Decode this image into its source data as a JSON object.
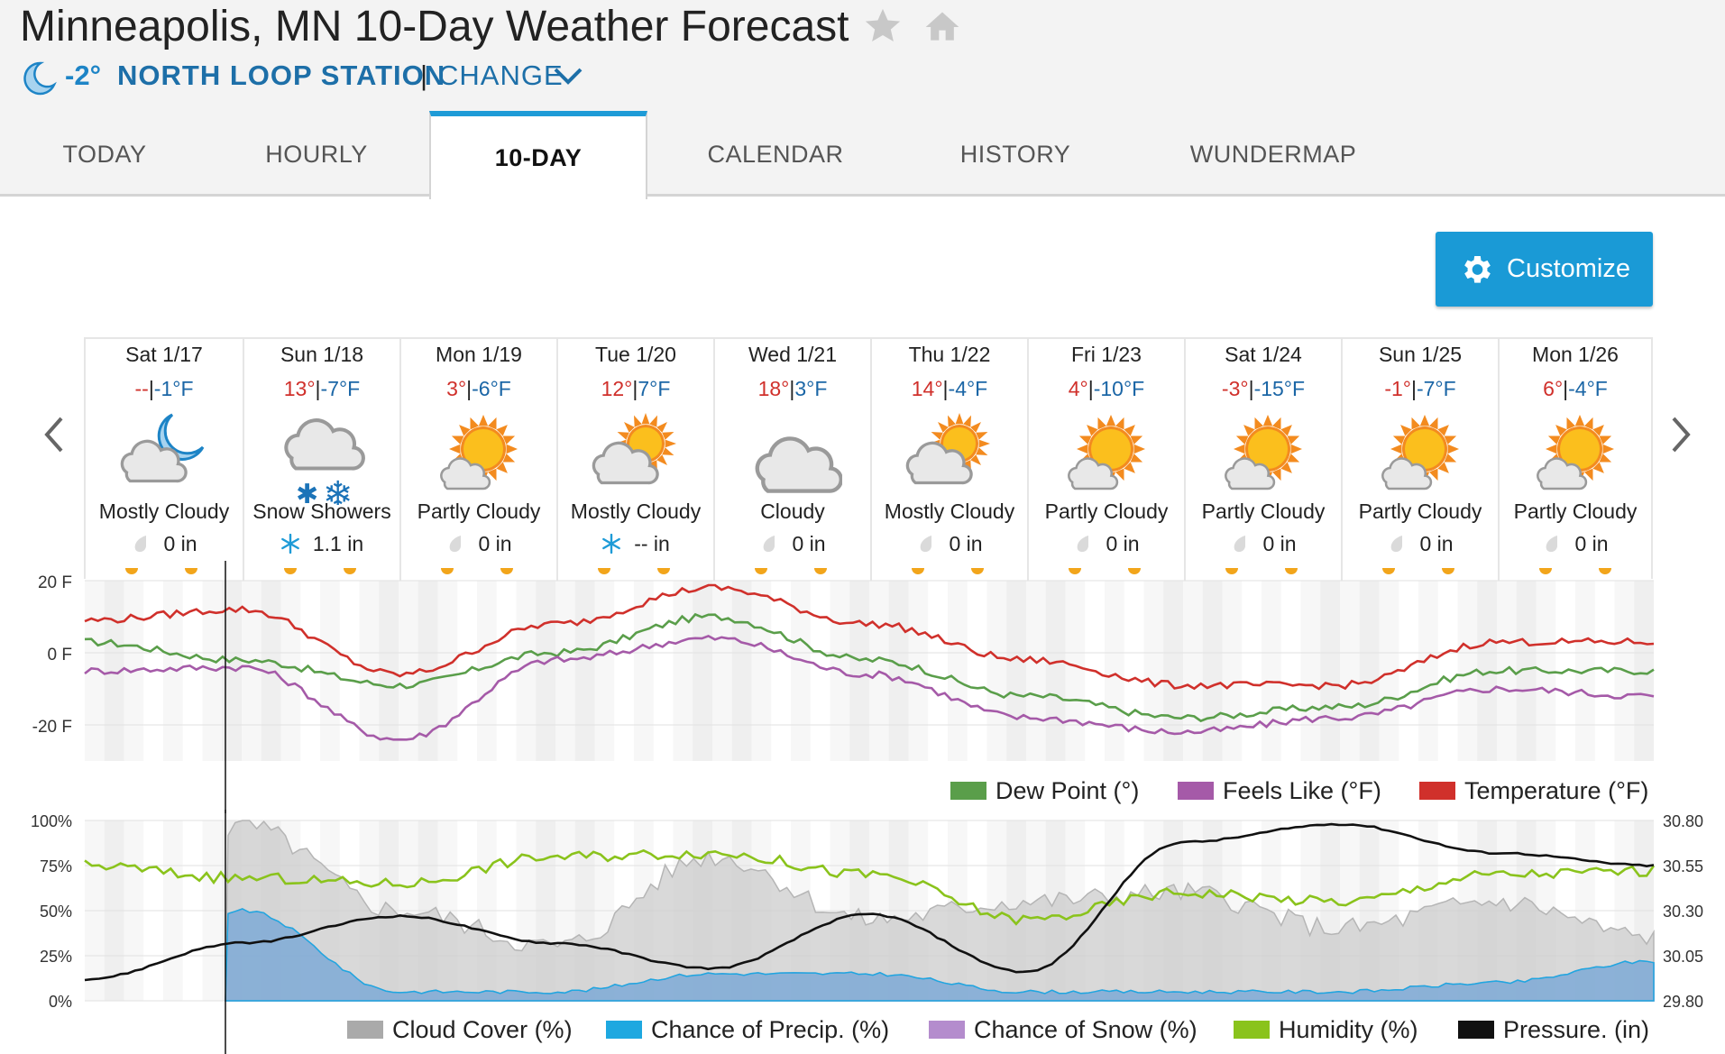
{
  "page": {
    "title": "Minneapolis, MN 10-Day Weather Forecast"
  },
  "station": {
    "current_temp": "-2°",
    "name": "NORTH LOOP STATION",
    "separator": "|",
    "change_label": "CHANGE"
  },
  "tabs": [
    "TODAY",
    "HOURLY",
    "10-DAY",
    "CALENDAR",
    "HISTORY",
    "WUNDERMAP"
  ],
  "active_tab": "10-DAY",
  "customize_label": "Customize",
  "days": [
    {
      "date": "Sat 1/17",
      "high": "--",
      "low": "-1°F",
      "condition": "Mostly Cloudy",
      "icon": "night-mostly-cloudy-icon",
      "precip": "0 in",
      "precip_icon": "rain-drop-icon"
    },
    {
      "date": "Sun 1/18",
      "high": "13°",
      "low": "-7°F",
      "condition": "Snow Showers",
      "icon": "snow-showers-icon",
      "precip": "1.1 in",
      "precip_icon": "snowflake-icon"
    },
    {
      "date": "Mon 1/19",
      "high": "3°",
      "low": "-6°F",
      "condition": "Partly Cloudy",
      "icon": "partly-cloudy-icon",
      "precip": "0 in",
      "precip_icon": "rain-drop-icon"
    },
    {
      "date": "Tue 1/20",
      "high": "12°",
      "low": "7°F",
      "condition": "Mostly Cloudy",
      "icon": "mostly-cloudy-icon",
      "precip": "-- in",
      "precip_icon": "snowflake-icon"
    },
    {
      "date": "Wed 1/21",
      "high": "18°",
      "low": "3°F",
      "condition": "Cloudy",
      "icon": "cloudy-icon",
      "precip": "0 in",
      "precip_icon": "rain-drop-icon"
    },
    {
      "date": "Thu 1/22",
      "high": "14°",
      "low": "-4°F",
      "condition": "Mostly Cloudy",
      "icon": "mostly-cloudy-icon",
      "precip": "0 in",
      "precip_icon": "rain-drop-icon"
    },
    {
      "date": "Fri 1/23",
      "high": "4°",
      "low": "-10°F",
      "condition": "Partly Cloudy",
      "icon": "partly-cloudy-icon",
      "precip": "0 in",
      "precip_icon": "rain-drop-icon"
    },
    {
      "date": "Sat 1/24",
      "high": "-3°",
      "low": "-15°F",
      "condition": "Partly Cloudy",
      "icon": "partly-cloudy-icon",
      "precip": "0 in",
      "precip_icon": "rain-drop-icon"
    },
    {
      "date": "Sun 1/25",
      "high": "-1°",
      "low": "-7°F",
      "condition": "Partly Cloudy",
      "icon": "partly-cloudy-icon",
      "precip": "0 in",
      "precip_icon": "rain-drop-icon"
    },
    {
      "date": "Mon 1/26",
      "high": "6°",
      "low": "-4°F",
      "condition": "Partly Cloudy",
      "icon": "partly-cloudy-icon",
      "precip": "0 in",
      "precip_icon": "rain-drop-icon"
    }
  ],
  "colors": {
    "accent": "#1e9bd7",
    "high": "#d0302b",
    "low": "#1b66a6",
    "dew_point": "#5a9e4a",
    "feels_like": "#a55aa8",
    "temperature": "#d0302b",
    "cloud_cover": "#aaaaaa",
    "precip": "#1ea8e0",
    "snow": "#b48ccd",
    "humidity": "#8ac31c",
    "pressure": "#111111"
  },
  "chart_data": [
    {
      "type": "line",
      "y_tick_labels": [
        "20 F",
        "0 F",
        "-20 F"
      ],
      "ylim": [
        -30,
        20
      ],
      "x": [
        "Sat 1/17",
        "Sun 1/18",
        "Mon 1/19",
        "Tue 1/20",
        "Wed 1/21",
        "Thu 1/22",
        "Fri 1/23",
        "Sat 1/24",
        "Sun 1/25",
        "Mon 1/26",
        "end"
      ],
      "series": [
        {
          "name": "Dew Point (°)",
          "color": "#5a9e4a",
          "values": [
            3,
            -2,
            -9,
            0,
            10,
            -2,
            -12,
            -18,
            -15,
            -5,
            -5
          ]
        },
        {
          "name": "Feels Like (°F)",
          "color": "#a55aa8",
          "values": [
            -5,
            -4,
            -24,
            -2,
            4,
            -6,
            -18,
            -22,
            -18,
            -10,
            -12
          ]
        },
        {
          "name": "Temperature (°F)",
          "color": "#d0302b",
          "values": [
            9,
            12,
            -6,
            8,
            18,
            8,
            -2,
            -9,
            -9,
            3,
            3
          ]
        }
      ],
      "legend_position": "bottom-right"
    },
    {
      "type": "area",
      "y_tick_labels": [
        "100%",
        "75%",
        "50%",
        "25%",
        "0%"
      ],
      "y2_tick_labels": [
        "30.80",
        "30.55",
        "30.30",
        "30.05",
        "29.80"
      ],
      "ylim": [
        0,
        100
      ],
      "y2lim": [
        29.8,
        30.8
      ],
      "x": [
        "Sat 1/17",
        "Sun 1/18",
        "Mon 1/19",
        "Tue 1/20",
        "Wed 1/21",
        "Thu 1/22",
        "Fri 1/23",
        "Sat 1/24",
        "Sun 1/25",
        "Mon 1/26",
        "end"
      ],
      "series": [
        {
          "name": "Cloud Cover (%)",
          "color": "#aaaaaa",
          "values": [
            0,
            97,
            50,
            30,
            80,
            45,
            55,
            60,
            40,
            55,
            35
          ]
        },
        {
          "name": "Chance of Precip. (%)",
          "color": "#1ea8e0",
          "values": [
            0,
            50,
            5,
            5,
            15,
            15,
            5,
            5,
            5,
            10,
            22
          ]
        },
        {
          "name": "Chance of Snow (%)",
          "color": "#b48ccd",
          "values": [
            0,
            50,
            5,
            5,
            15,
            15,
            5,
            5,
            5,
            10,
            22
          ]
        },
        {
          "name": "Humidity (%)",
          "color": "#8ac31c",
          "values": [
            75,
            68,
            65,
            80,
            82,
            70,
            45,
            60,
            55,
            70,
            72
          ]
        },
        {
          "name": "Pressure. (in)",
          "color": "#111111",
          "values": [
            29.92,
            30.12,
            30.27,
            30.12,
            29.98,
            30.28,
            29.96,
            30.68,
            30.78,
            30.62,
            30.55
          ]
        }
      ],
      "legend_position": "bottom"
    }
  ]
}
